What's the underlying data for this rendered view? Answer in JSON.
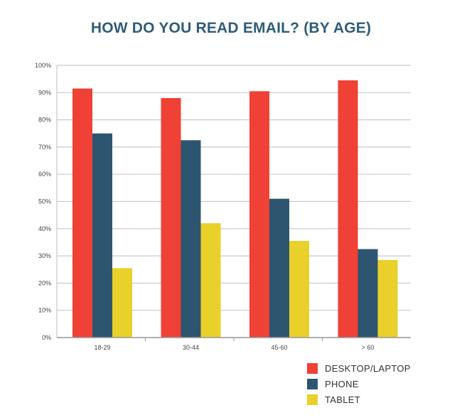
{
  "title": "HOW DO YOU READ EMAIL? (BY AGE)",
  "chart_data": {
    "type": "bar",
    "title": "HOW DO YOU READ EMAIL? (BY AGE)",
    "categories": [
      "18-29",
      "30-44",
      "45-60",
      "> 60"
    ],
    "series": [
      {
        "name": "DESKTOP/LAPTOP",
        "color": "#ef4135",
        "values": [
          91.5,
          88,
          90.5,
          94.5
        ]
      },
      {
        "name": "PHONE",
        "color": "#2d5570",
        "values": [
          75,
          72.5,
          51,
          32.5
        ]
      },
      {
        "name": "TABLET",
        "color": "#e9d02a",
        "values": [
          25.5,
          42,
          35.5,
          28.5
        ]
      }
    ],
    "ylim": [
      0,
      100
    ],
    "yticks": [
      "0%",
      "10%",
      "20%",
      "30%",
      "40%",
      "50%",
      "60%",
      "70%",
      "80%",
      "90%",
      "100%"
    ],
    "grid": true,
    "legend_position": "bottom-right",
    "xlabel": "",
    "ylabel": ""
  }
}
